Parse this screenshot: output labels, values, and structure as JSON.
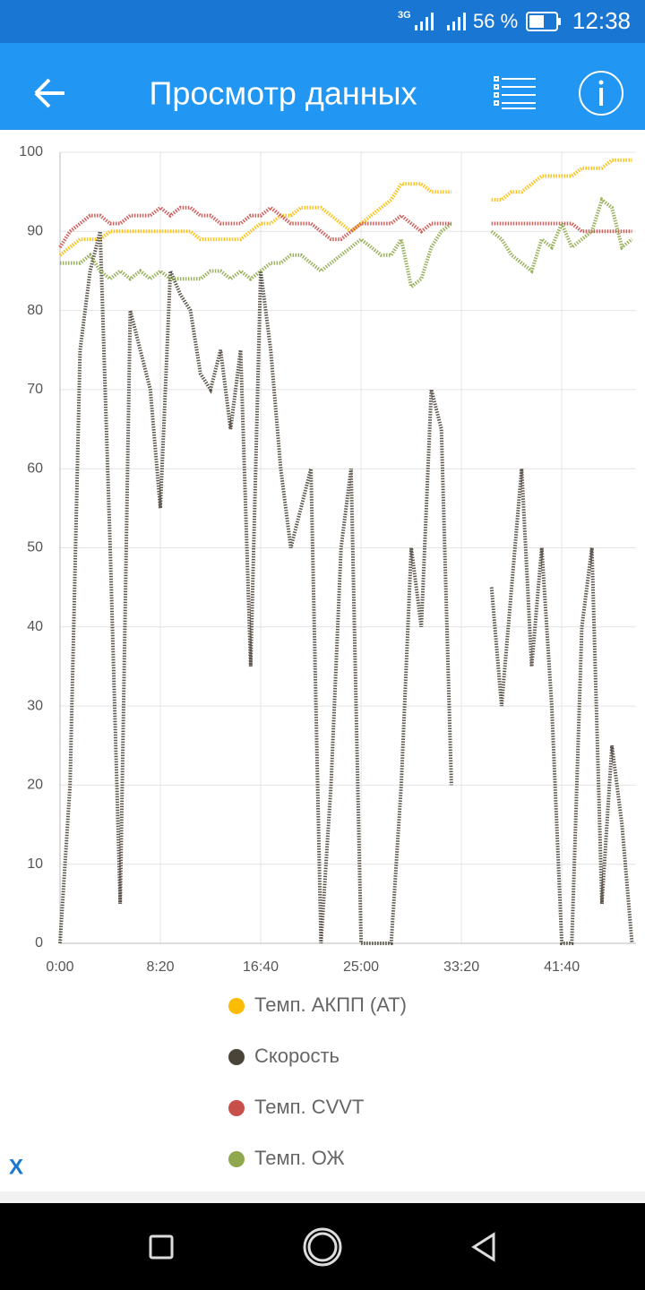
{
  "status_bar": {
    "network": "3G",
    "battery": "56 %",
    "time": "12:38"
  },
  "header": {
    "title": "Просмотр данных"
  },
  "footer": {
    "close": "X"
  },
  "chart_data": {
    "type": "line",
    "x": [
      0,
      50,
      100,
      150,
      200,
      250,
      300,
      350,
      400,
      450,
      500,
      550,
      600,
      650,
      700,
      750,
      800,
      850,
      900,
      950,
      1000,
      1050,
      1100,
      1150,
      1200,
      1250,
      1300,
      1350,
      1400,
      1450,
      1500,
      1550,
      1600,
      1650,
      1700,
      1750,
      1800,
      1850,
      1900,
      1950,
      2000,
      2050,
      2100,
      2150,
      2200,
      2250,
      2300,
      2350,
      2400,
      2450,
      2500,
      2550,
      2600,
      2650,
      2700,
      2750,
      2800,
      2850
    ],
    "xlim": [
      0,
      2870
    ],
    "xticks": [
      {
        "value": 0,
        "label": "0:00"
      },
      {
        "value": 500,
        "label": "8:20"
      },
      {
        "value": 1000,
        "label": "16:40"
      },
      {
        "value": 1500,
        "label": "25:00"
      },
      {
        "value": 2000,
        "label": "33:20"
      },
      {
        "value": 2500,
        "label": "41:40"
      }
    ],
    "ylim": [
      0,
      100
    ],
    "yticks": [
      0,
      10,
      20,
      30,
      40,
      50,
      60,
      70,
      80,
      90,
      100
    ],
    "grid": true,
    "legend": "bottom",
    "series": [
      {
        "name": "Темп. АКПП (АТ)",
        "color": "#fbbc05",
        "values": [
          87,
          88,
          89,
          89,
          89,
          90,
          90,
          90,
          90,
          90,
          90,
          90,
          90,
          90,
          89,
          89,
          89,
          89,
          89,
          90,
          91,
          91,
          92,
          92,
          93,
          93,
          93,
          92,
          91,
          90,
          91,
          92,
          93,
          94,
          96,
          96,
          96,
          95,
          95,
          95,
          null,
          null,
          null,
          94,
          94,
          95,
          95,
          96,
          97,
          97,
          97,
          97,
          98,
          98,
          98,
          99,
          99,
          99
        ]
      },
      {
        "name": "Скорость",
        "color": "#4a4438",
        "values": [
          0,
          20,
          75,
          85,
          90,
          50,
          5,
          80,
          75,
          70,
          55,
          85,
          82,
          80,
          72,
          70,
          75,
          65,
          75,
          35,
          85,
          75,
          60,
          50,
          55,
          60,
          0,
          20,
          50,
          60,
          0,
          0,
          0,
          0,
          20,
          50,
          40,
          70,
          65,
          20,
          null,
          null,
          null,
          45,
          30,
          45,
          60,
          35,
          50,
          30,
          0,
          0,
          40,
          50,
          5,
          25,
          15,
          0
        ]
      },
      {
        "name": "Темп. CVVT",
        "color": "#c8504a",
        "values": [
          88,
          90,
          91,
          92,
          92,
          91,
          91,
          92,
          92,
          92,
          93,
          92,
          93,
          93,
          92,
          92,
          91,
          91,
          91,
          92,
          92,
          93,
          92,
          91,
          91,
          91,
          90,
          89,
          89,
          90,
          91,
          91,
          91,
          91,
          92,
          91,
          90,
          91,
          91,
          91,
          null,
          null,
          null,
          91,
          91,
          91,
          91,
          91,
          91,
          91,
          91,
          91,
          90,
          90,
          90,
          90,
          90,
          90
        ]
      },
      {
        "name": "Темп. ОЖ",
        "color": "#8fa84e",
        "values": [
          86,
          86,
          86,
          87,
          85,
          84,
          85,
          84,
          85,
          84,
          85,
          84,
          84,
          84,
          84,
          85,
          85,
          84,
          85,
          84,
          85,
          86,
          86,
          87,
          87,
          86,
          85,
          86,
          87,
          88,
          89,
          88,
          87,
          87,
          89,
          83,
          84,
          88,
          90,
          91,
          null,
          null,
          null,
          90,
          89,
          87,
          86,
          85,
          89,
          88,
          91,
          88,
          89,
          90,
          94,
          93,
          88,
          89
        ]
      }
    ]
  }
}
